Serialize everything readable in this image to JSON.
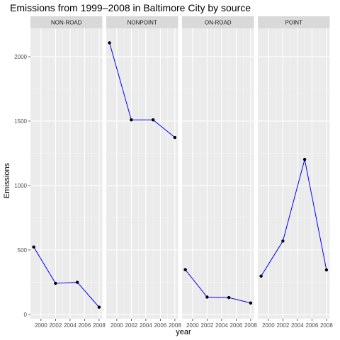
{
  "chart_data": {
    "type": "line",
    "title": "Emissions from 1999–2008 in Baltimore City by source",
    "xlabel": "year",
    "ylabel": "Emissions",
    "x_ticks": [
      2000,
      2002,
      2004,
      2006,
      2008
    ],
    "y_ticks": [
      0,
      500,
      1000,
      1500,
      2000
    ],
    "y_tick_labels": [
      "0",
      "500",
      "1000",
      "1500",
      "2000"
    ],
    "xlim": [
      1998.55,
      2008.45
    ],
    "ylim": [
      -34,
      2220
    ],
    "grid": true,
    "line_color": "#0000ff",
    "point_color": "#000000",
    "panel_background": "#ebebeb",
    "strip_background": "#d9d9d9",
    "x": [
      1999,
      2002,
      2005,
      2008
    ],
    "facets": [
      {
        "name": "NON-ROAD",
        "values": [
          522.94,
          240.85,
          248.93,
          55.82
        ]
      },
      {
        "name": "NONPOINT",
        "values": [
          2107.63,
          1509.5,
          1509.5,
          1373.21
        ]
      },
      {
        "name": "ON-ROAD",
        "values": [
          346.82,
          134.31,
          130.43,
          88.28
        ]
      },
      {
        "name": "POINT",
        "values": [
          296.8,
          569.26,
          1202.49,
          344.98
        ]
      }
    ]
  }
}
